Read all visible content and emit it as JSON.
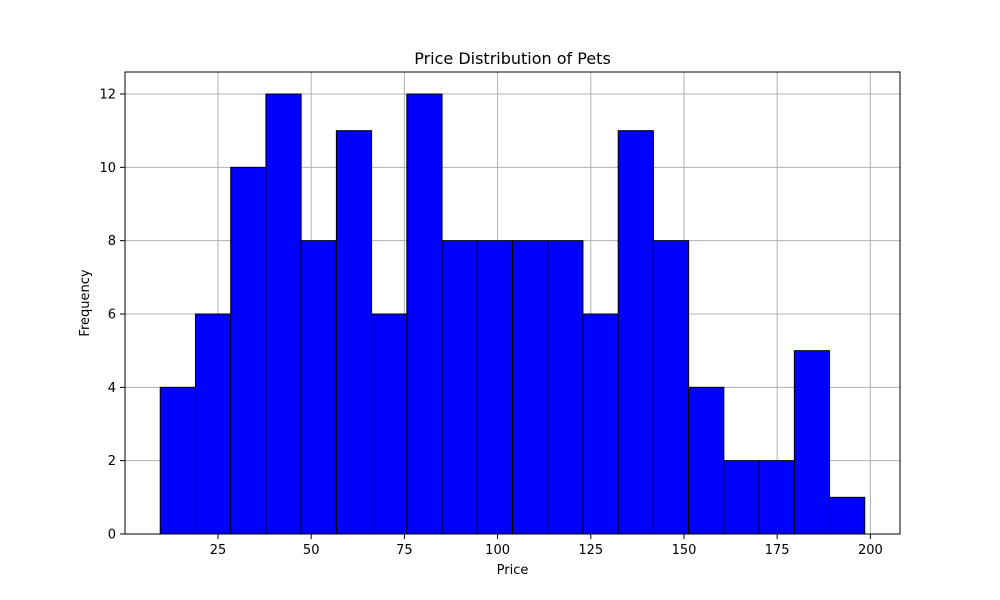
{
  "chart_data": {
    "type": "bar",
    "title": "Price Distribution of Pets",
    "xlabel": "Price",
    "ylabel": "Frequency",
    "bin_edges": [
      9.5,
      18.95,
      28.4,
      37.85,
      47.3,
      56.75,
      66.2,
      75.65,
      85.1,
      94.55,
      104.0,
      113.45,
      122.9,
      132.35,
      141.8,
      151.25,
      160.7,
      170.15,
      179.6,
      189.05,
      198.5
    ],
    "values": [
      4,
      6,
      10,
      12,
      8,
      11,
      6,
      12,
      8,
      8,
      8,
      8,
      6,
      11,
      8,
      4,
      2,
      2,
      5,
      1
    ],
    "xlim": [
      0.05,
      207.95
    ],
    "ylim": [
      0,
      12.6
    ],
    "xticks": [
      25,
      50,
      75,
      100,
      125,
      150,
      175,
      200
    ],
    "yticks": [
      0,
      2,
      4,
      6,
      8,
      10,
      12
    ],
    "grid": true,
    "colors": {
      "bar_fill": "#0000ff",
      "bar_edge": "#000000",
      "grid": "#b0b0b0"
    }
  }
}
